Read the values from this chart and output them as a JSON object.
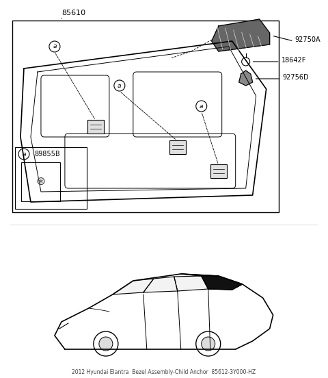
{
  "bg_color": "#ffffff",
  "line_color": "#000000",
  "title": "2012 Hyundai Elantra Bezel Assembly-Child Anchor\n85612-3Y000-HZ",
  "parts": {
    "main_label": "85610",
    "callout_a": "a",
    "part_89855B": "89855B",
    "part_18642F": "18642F",
    "part_92750A": "92750A",
    "part_92756D": "92756D"
  }
}
